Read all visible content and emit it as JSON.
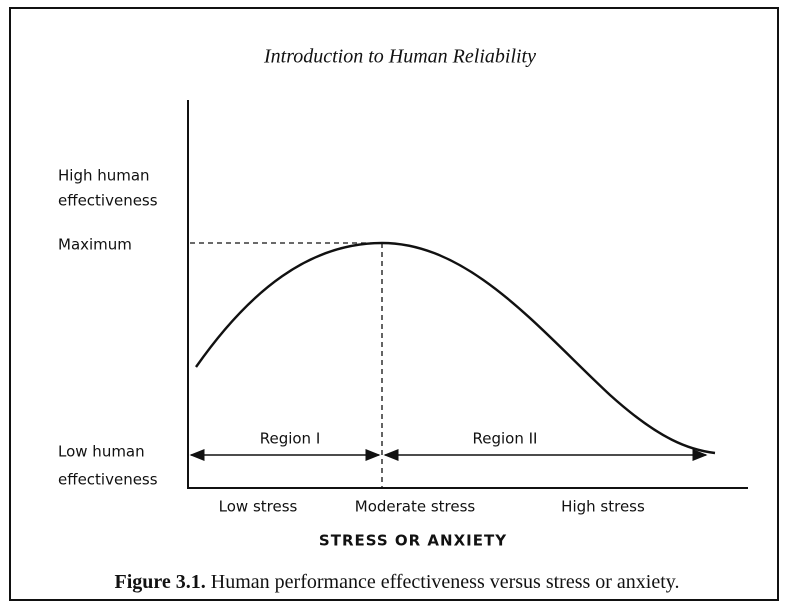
{
  "header": {
    "title": "Introduction to Human Reliability"
  },
  "y_axis": {
    "high_line1": "High human",
    "high_line2": "effectiveness",
    "maximum": "Maximum",
    "low_line1": "Low human",
    "low_line2": "effectiveness"
  },
  "regions": {
    "region_1": "Region I",
    "region_2": "Region II"
  },
  "x_axis": {
    "low": "Low stress",
    "moderate": "Moderate stress",
    "high": "High stress",
    "title": "STRESS OR ANXIETY"
  },
  "caption": {
    "label": "Figure 3.1.",
    "text": "Human performance effectiveness versus stress or anxiety."
  }
}
